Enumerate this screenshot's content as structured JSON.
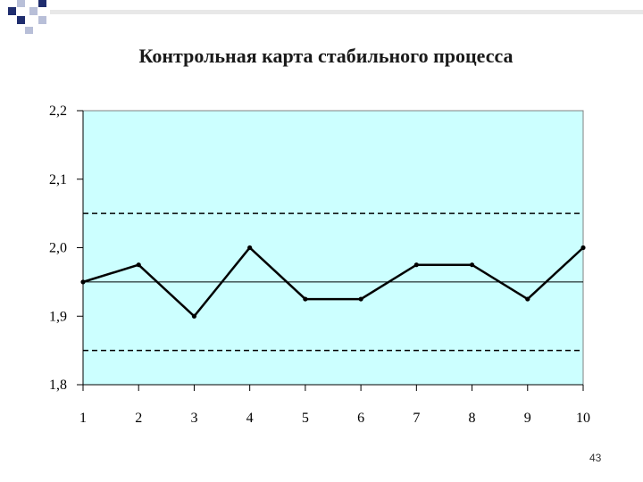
{
  "header": {
    "accent_dark": "#1F2D6E",
    "accent_light": "#B8BFD8"
  },
  "slide": {
    "page_number": "43"
  },
  "chart_data": {
    "type": "line",
    "title": "Контрольная карта стабильного процесса",
    "xlabel": "",
    "ylabel": "",
    "x": [
      1,
      2,
      3,
      4,
      5,
      6,
      7,
      8,
      9,
      10
    ],
    "x_tick_labels": [
      "1",
      "2",
      "3",
      "4",
      "5",
      "6",
      "7",
      "8",
      "9",
      "10"
    ],
    "y_tick_labels": [
      "1,8",
      "1,9",
      "2,0",
      "2,1",
      "2,2"
    ],
    "y_ticks": [
      1.8,
      1.9,
      2.0,
      2.1,
      2.2
    ],
    "ylim": [
      1.8,
      2.2
    ],
    "series": [
      {
        "values": [
          1.95,
          1.975,
          1.9,
          2.0,
          1.925,
          1.925,
          1.975,
          1.975,
          1.925,
          2.0
        ]
      }
    ],
    "reference_lines": {
      "center_line": 1.95,
      "upper_control_limit": 2.05,
      "lower_control_limit": 1.85
    },
    "colors": {
      "plot_background": "#CCFFFF",
      "line": "#000000"
    },
    "grid": false,
    "legend": "none"
  }
}
